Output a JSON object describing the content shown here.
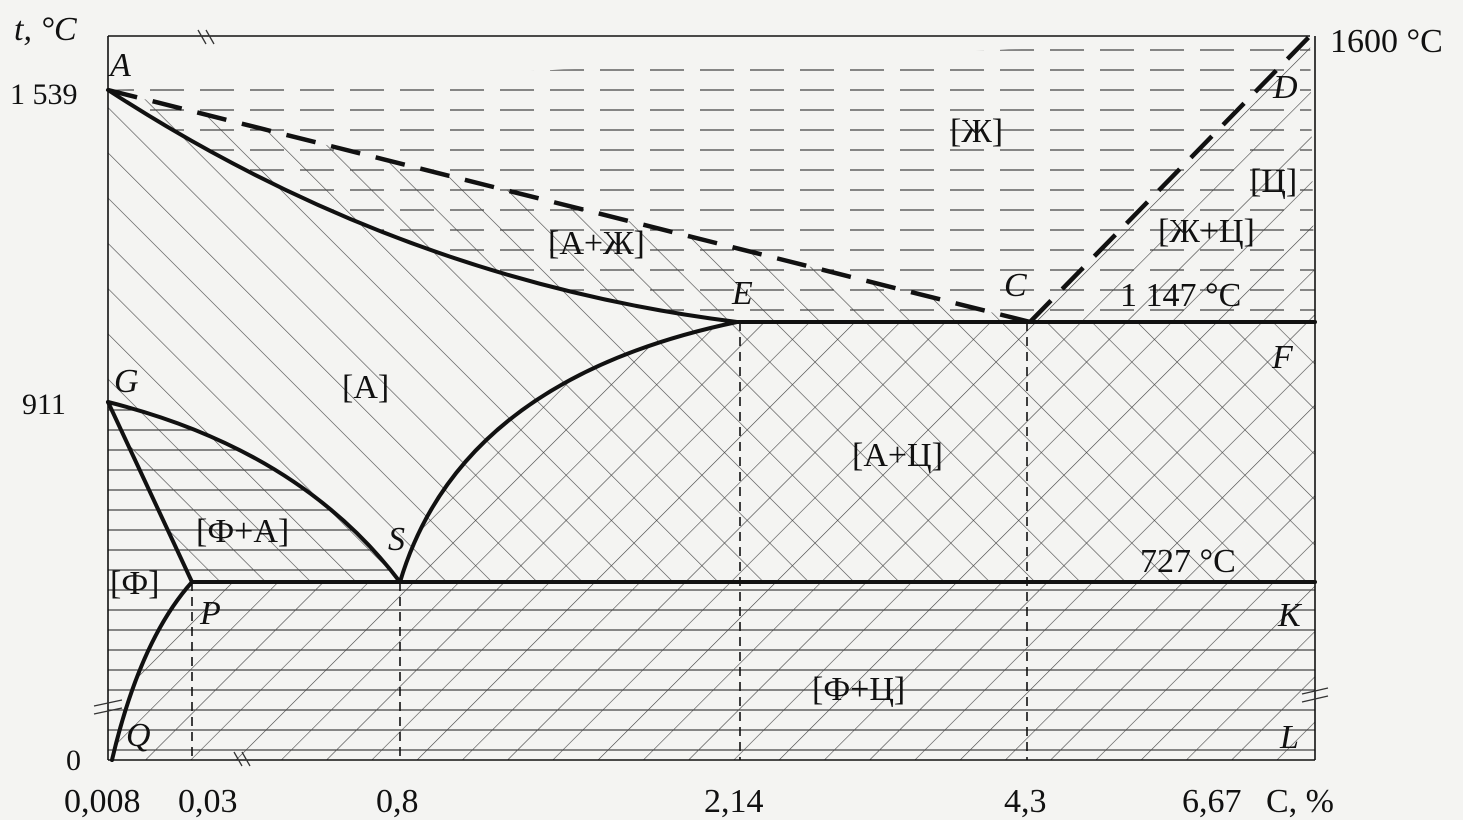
{
  "axis": {
    "y_label": "t, °C",
    "x_label": "C, %",
    "y_ticks": [
      "1 539",
      "911",
      "0"
    ],
    "x_ticks": [
      "0,008",
      "0,03",
      "0,8",
      "2,14",
      "4,3",
      "6,67"
    ]
  },
  "points": {
    "A": "A",
    "D": "D",
    "E": "E",
    "C": "C",
    "F": "F",
    "G": "G",
    "S": "S",
    "P": "P",
    "K": "K",
    "Q": "Q",
    "L": "L"
  },
  "phases": {
    "liquid": "[Ж]",
    "cementite": "[Ц]",
    "liquid_cementite": "[Ж+Ц]",
    "austenite_liquid": "[А+Ж]",
    "austenite": "[А]",
    "austenite_cementite": "[А+Ц]",
    "ferrite_austenite": "[Ф+А]",
    "ferrite": "[Ф]",
    "ferrite_cementite": "[Ф+Ц]"
  },
  "temperatures": {
    "top": "1600 °C",
    "eutectic": "1 147 °C",
    "eutectoid": "727 °C"
  },
  "colors": {
    "ink": "#111111",
    "hatch": "#444444",
    "background": "#f4f4f2"
  }
}
